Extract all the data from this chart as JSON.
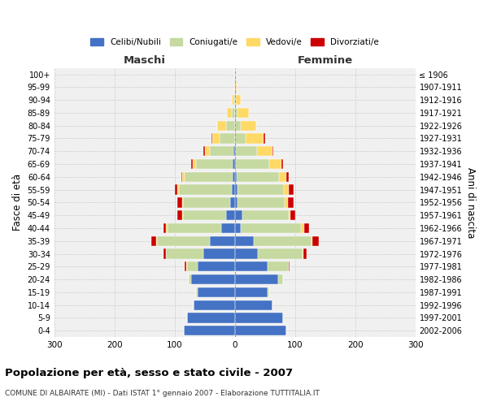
{
  "age_groups": [
    "0-4",
    "5-9",
    "10-14",
    "15-19",
    "20-24",
    "25-29",
    "30-34",
    "35-39",
    "40-44",
    "45-49",
    "50-54",
    "55-59",
    "60-64",
    "65-69",
    "70-74",
    "75-79",
    "80-84",
    "85-89",
    "90-94",
    "95-99",
    "100+"
  ],
  "birth_years": [
    "2002-2006",
    "1997-2001",
    "1992-1996",
    "1987-1991",
    "1982-1986",
    "1977-1981",
    "1972-1976",
    "1967-1971",
    "1962-1966",
    "1957-1961",
    "1952-1956",
    "1947-1951",
    "1942-1946",
    "1937-1941",
    "1932-1936",
    "1927-1931",
    "1922-1926",
    "1917-1921",
    "1912-1916",
    "1907-1911",
    "≤ 1906"
  ],
  "male": {
    "celibi": [
      85,
      80,
      68,
      62,
      72,
      62,
      52,
      42,
      22,
      14,
      8,
      5,
      4,
      3,
      2,
      0,
      0,
      0,
      0,
      0,
      0
    ],
    "coniugati": [
      0,
      0,
      0,
      2,
      5,
      18,
      62,
      88,
      90,
      72,
      78,
      88,
      80,
      62,
      40,
      25,
      15,
      5,
      2,
      0,
      0
    ],
    "vedovi": [
      0,
      0,
      0,
      0,
      0,
      1,
      0,
      1,
      2,
      1,
      2,
      2,
      3,
      5,
      8,
      12,
      15,
      8,
      3,
      1,
      0
    ],
    "divorziati": [
      0,
      0,
      0,
      0,
      0,
      2,
      5,
      8,
      5,
      8,
      8,
      5,
      2,
      2,
      2,
      2,
      0,
      0,
      0,
      0,
      0
    ]
  },
  "female": {
    "nubili": [
      85,
      80,
      62,
      55,
      72,
      55,
      38,
      32,
      10,
      12,
      5,
      4,
      3,
      2,
      2,
      0,
      0,
      0,
      0,
      0,
      0
    ],
    "coniugate": [
      0,
      0,
      0,
      2,
      8,
      35,
      75,
      95,
      100,
      78,
      78,
      78,
      70,
      55,
      35,
      18,
      10,
      5,
      2,
      0,
      0
    ],
    "vedove": [
      0,
      0,
      0,
      0,
      0,
      0,
      1,
      2,
      5,
      3,
      5,
      8,
      12,
      20,
      25,
      30,
      25,
      18,
      8,
      3,
      1
    ],
    "divorziate": [
      0,
      0,
      0,
      0,
      0,
      1,
      5,
      10,
      8,
      8,
      10,
      8,
      5,
      3,
      2,
      2,
      0,
      0,
      0,
      0,
      0
    ]
  },
  "colors": {
    "celibi": "#4472C4",
    "coniugati": "#C5D9A0",
    "vedovi": "#FFD966",
    "divorziati": "#CC0000"
  },
  "title": "Popolazione per età, sesso e stato civile - 2007",
  "subtitle": "COMUNE DI ALBAIRATE (MI) - Dati ISTAT 1° gennaio 2007 - Elaborazione TUTTITALIA.IT",
  "xlabel_left": "Maschi",
  "xlabel_right": "Femmine",
  "ylabel_left": "Fasce di età",
  "ylabel_right": "Anni di nascita",
  "xlim": 300,
  "legend_labels": [
    "Celibi/Nubili",
    "Coniugati/e",
    "Vedovi/e",
    "Divorziati/e"
  ],
  "background_color": "#ffffff",
  "plot_bg_color": "#f0f0f0",
  "grid_color": "#cccccc"
}
